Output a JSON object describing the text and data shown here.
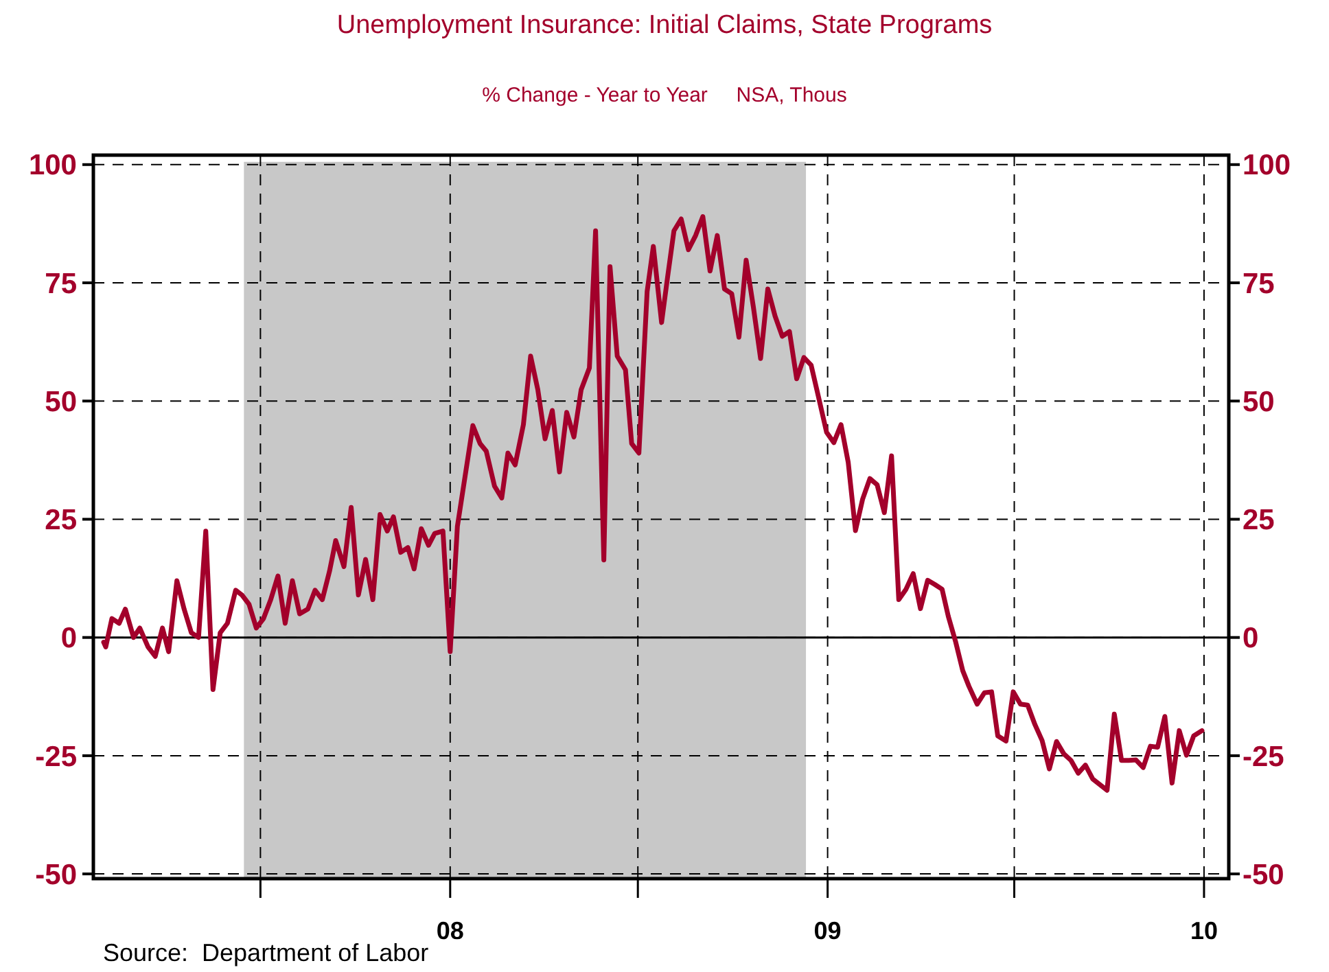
{
  "chart_data": {
    "type": "line",
    "title": "Unemployment Insurance: Initial Claims, State Programs",
    "subtitle": "% Change - Year to Year     NSA, Thous",
    "annotations": [
      "Source:  Department of Labor"
    ],
    "x": [
      "2007-01-30",
      "2007-02-01",
      "2007-02-07",
      "2007-02-14",
      "2007-02-20",
      "2007-02-28",
      "2007-03-06",
      "2007-03-14",
      "2007-03-21",
      "2007-03-28",
      "2007-04-03",
      "2007-04-11",
      "2007-04-18",
      "2007-04-25",
      "2007-05-02",
      "2007-05-09",
      "2007-05-16",
      "2007-05-23",
      "2007-05-30",
      "2007-06-07",
      "2007-06-13",
      "2007-06-20",
      "2007-06-27",
      "2007-07-04",
      "2007-07-11",
      "2007-07-18",
      "2007-07-25",
      "2007-08-01",
      "2007-08-08",
      "2007-08-16",
      "2007-08-23",
      "2007-08-30",
      "2007-09-06",
      "2007-09-12",
      "2007-09-20",
      "2007-09-27",
      "2007-10-04",
      "2007-10-11",
      "2007-10-18",
      "2007-10-25",
      "2007-11-01",
      "2007-11-07",
      "2007-11-14",
      "2007-11-21",
      "2007-11-27",
      "2007-12-04",
      "2007-12-11",
      "2007-12-17",
      "2007-12-25",
      "2008-01-01",
      "2008-01-08",
      "2008-01-23",
      "2008-01-30",
      "2008-02-05",
      "2008-02-13",
      "2008-02-20",
      "2008-02-26",
      "2008-03-04",
      "2008-03-12",
      "2008-03-19",
      "2008-03-26",
      "2008-04-02",
      "2008-04-09",
      "2008-04-16",
      "2008-04-23",
      "2008-04-30",
      "2008-05-07",
      "2008-05-15",
      "2008-05-21",
      "2008-05-29",
      "2008-06-04",
      "2008-06-11",
      "2008-06-19",
      "2008-06-25",
      "2008-07-02",
      "2008-07-10",
      "2008-07-16",
      "2008-07-24",
      "2008-07-30",
      "2008-08-05",
      "2008-08-12",
      "2008-08-19",
      "2008-08-26",
      "2008-09-02",
      "2008-09-09",
      "2008-09-16",
      "2008-09-23",
      "2008-09-30",
      "2008-10-07",
      "2008-10-14",
      "2008-10-21",
      "2008-10-28",
      "2008-11-04",
      "2008-11-11",
      "2008-11-18",
      "2008-11-25",
      "2008-12-02",
      "2008-12-09",
      "2008-12-16",
      "2008-12-23",
      "2008-12-31",
      "2009-01-07",
      "2009-01-14",
      "2009-01-21",
      "2009-01-28",
      "2009-02-04",
      "2009-02-11",
      "2009-02-18",
      "2009-02-25",
      "2009-03-04",
      "2009-03-11",
      "2009-03-18",
      "2009-03-25",
      "2009-04-01",
      "2009-04-08",
      "2009-04-15",
      "2009-04-22",
      "2009-04-28",
      "2009-05-05",
      "2009-05-12",
      "2009-05-18",
      "2009-05-26",
      "2009-06-02",
      "2009-06-09",
      "2009-06-15",
      "2009-06-23",
      "2009-06-30",
      "2009-07-07",
      "2009-07-14",
      "2009-07-21",
      "2009-07-28",
      "2009-08-04",
      "2009-08-11",
      "2009-08-18",
      "2009-08-25",
      "2009-09-01",
      "2009-09-08",
      "2009-09-15",
      "2009-09-22",
      "2009-09-29",
      "2009-10-06",
      "2009-10-13",
      "2009-10-20",
      "2009-10-27",
      "2009-11-03",
      "2009-11-10",
      "2009-11-17",
      "2009-11-24",
      "2009-12-01",
      "2009-12-08",
      "2009-12-15",
      "2009-12-22",
      "2009-12-30"
    ],
    "series": [
      {
        "color": "#a3002b",
        "values": [
          -1,
          -2,
          4,
          3,
          6,
          0,
          2,
          -2,
          -4,
          2,
          -3,
          12,
          6,
          1,
          0,
          22.5,
          -11,
          1,
          3,
          10,
          9,
          7,
          2,
          4,
          8,
          13,
          3,
          12,
          5,
          6,
          10,
          8,
          14,
          20.5,
          15,
          27.5,
          9,
          16.5,
          8,
          26,
          22.5,
          25.5,
          18,
          19,
          14.5,
          23,
          19.5,
          22,
          22.5,
          -3,
          23.5,
          44.8,
          41,
          39.4,
          32,
          29.5,
          39,
          36.5,
          45,
          59.5,
          52.4,
          42,
          48,
          35,
          47.6,
          42.4,
          52.4,
          57,
          86,
          16.4,
          78.4,
          59.5,
          56.6,
          41,
          39,
          73.2,
          82.7,
          66.6,
          76.5,
          86,
          88.5,
          82,
          85,
          89,
          77.5,
          85,
          73.7,
          72.7,
          63.5,
          79.8,
          69.9,
          59,
          73.7,
          68,
          63.7,
          64.7,
          54.7,
          59.2,
          57.6,
          51,
          43.4,
          41.2,
          45,
          37,
          22.6,
          29.3,
          33.6,
          32.3,
          26.4,
          38.4,
          8,
          10.2,
          13.5,
          6.1,
          12.1,
          11.2,
          10.2,
          4.5,
          -0.8,
          -7,
          -10.3,
          -14.1,
          -11.7,
          -11.5,
          -20.8,
          -21.9,
          -11.5,
          -14.1,
          -14.3,
          -18.4,
          -21.8,
          -27.8,
          -22,
          -24.6,
          -26,
          -28.7,
          -27,
          -29.9,
          -31.1,
          -32.3,
          -16.2,
          -26,
          -26,
          -25.9,
          -27.5,
          -23,
          -23.2,
          -16.7,
          -30.8,
          -19.7,
          -24.9,
          -20.8,
          -19.7
        ]
      }
    ],
    "xlim": [
      "2007-01-20",
      "2010-01-25"
    ],
    "xticks": [
      {
        "value": "2007-07-01",
        "label": null
      },
      {
        "value": "2008-01-01",
        "label": "08"
      },
      {
        "value": "2008-07-01",
        "label": null
      },
      {
        "value": "2009-01-01",
        "label": "09"
      },
      {
        "value": "2009-07-01",
        "label": null
      },
      {
        "value": "2010-01-01",
        "label": "10"
      }
    ],
    "ylim": [
      -51,
      102
    ],
    "yticks": [
      -50,
      -25,
      0,
      25,
      50,
      75,
      100
    ],
    "y2lim": [
      -51,
      102
    ],
    "y2ticks": [
      -50,
      -25,
      0,
      25,
      50,
      75,
      100
    ],
    "bands": [
      {
        "axis": "x",
        "from": "2007-06-15",
        "to": "2008-12-11",
        "color": "#c8c8c8"
      }
    ],
    "ref_lines": [
      {
        "axis": "y",
        "value": 0,
        "line_style": "solid"
      }
    ],
    "grid": true,
    "marker": "none",
    "line_style": "solid"
  }
}
